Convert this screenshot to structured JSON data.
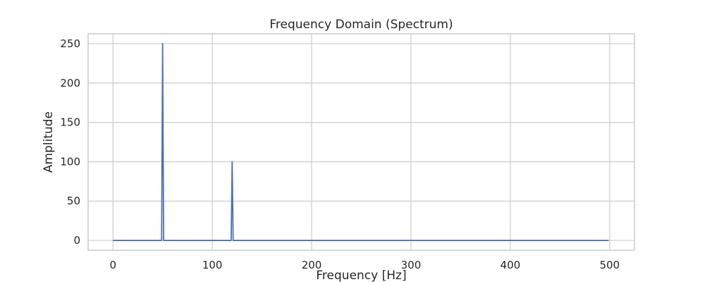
{
  "chart_data": {
    "type": "line",
    "title": "Frequency Domain (Spectrum)",
    "xlabel": "Frequency [Hz]",
    "ylabel": "Amplitude",
    "xlim": [
      -25,
      525
    ],
    "ylim": [
      -12.5,
      262.5
    ],
    "xticks": [
      0,
      100,
      200,
      300,
      400,
      500
    ],
    "yticks": [
      0,
      50,
      100,
      150,
      200,
      250
    ],
    "grid": true,
    "line_color": "#4c72b0",
    "series": [
      {
        "x": [
          0,
          49,
          50,
          51,
          119,
          120,
          121,
          499
        ],
        "y": [
          0,
          0,
          250,
          0,
          0,
          100,
          0,
          0
        ]
      }
    ]
  }
}
